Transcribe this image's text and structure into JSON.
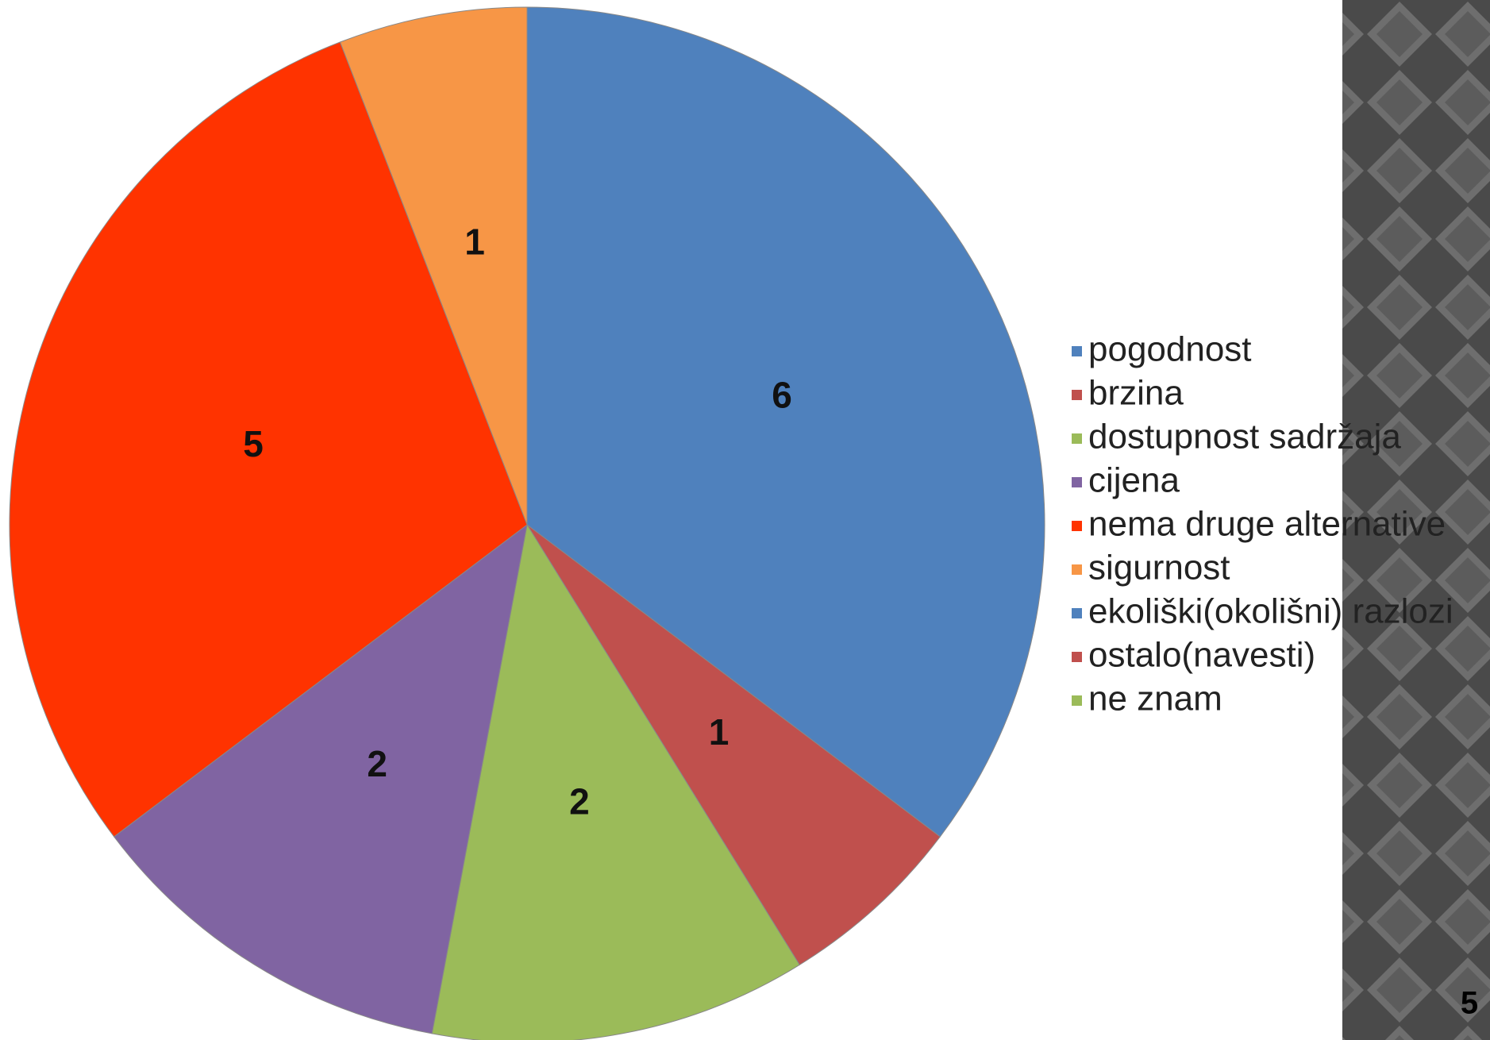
{
  "chart_data": {
    "type": "pie",
    "categories": [
      "pogodnost",
      "brzina",
      "dostupnost sadržaja",
      "cijena",
      "nema druge alternative",
      "sigurnost",
      "ekoliški(okolišni) razlozi",
      "ostalo(navesti)",
      "ne znam"
    ],
    "values": [
      6,
      1,
      2,
      2,
      5,
      1,
      0,
      0,
      0
    ],
    "colors": [
      "#4f81bd",
      "#c0504d",
      "#9bbb59",
      "#8064a2",
      "#ff3300",
      "#f79646",
      "#4f81bd",
      "#c0504d",
      "#9bbb59"
    ],
    "legend": "right"
  },
  "page_number": "5"
}
